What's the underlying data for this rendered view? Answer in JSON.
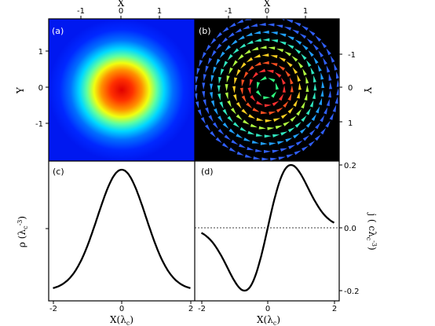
{
  "chart_data": [
    {
      "panel": "(a)",
      "type": "heatmap",
      "xlabel": "X",
      "ylabel": "Y",
      "xlim": [
        -1.9,
        1.9
      ],
      "ylim": [
        -1.9,
        1.9
      ],
      "x_ticks": [
        "-1",
        "0",
        "1"
      ],
      "y_ticks": [
        "1",
        "0",
        "-1"
      ],
      "description_values": {
        "peak": [
          0,
          0
        ],
        "colormap": "jet"
      }
    },
    {
      "panel": "(b)",
      "type": "vector-field",
      "xlabel": "X",
      "ylabel": "Y",
      "xlim": [
        -1.9,
        1.9
      ],
      "ylim": [
        -1.9,
        1.9
      ],
      "x_ticks": [
        "-1",
        "0",
        "1"
      ],
      "y_ticks": [
        "-1",
        "0",
        "1"
      ],
      "background": "#000000",
      "rotation": "counterclockwise"
    },
    {
      "panel": "(c)",
      "type": "line",
      "xlabel": "X(λc)",
      "ylabel": "ρ (λc-3)",
      "xlim": [
        -2.1,
        2.1
      ],
      "x_ticks": [
        "-2",
        "0",
        "2"
      ],
      "x": [
        -2,
        -1.5,
        -1,
        -0.5,
        0,
        0.5,
        1,
        1.5,
        2
      ],
      "y": [
        0.02,
        0.15,
        0.4,
        0.75,
        0.92,
        0.75,
        0.4,
        0.15,
        0.02
      ]
    },
    {
      "panel": "(d)",
      "type": "line",
      "xlabel": "X(λc)",
      "ylabel": "j ( cλc-3 )",
      "xlim": [
        -2.1,
        2.1
      ],
      "ylim": [
        -0.22,
        0.22
      ],
      "x_ticks": [
        "-2",
        "0",
        "2"
      ],
      "y_ticks": [
        "0.2",
        "0.0",
        "-0.2"
      ],
      "reference_line": 0.0,
      "x": [
        -2,
        -1.5,
        -1,
        -0.7,
        -0.4,
        0,
        0.4,
        0.7,
        1,
        1.5,
        2
      ],
      "y": [
        -0.02,
        -0.08,
        -0.18,
        -0.2,
        -0.15,
        0.0,
        0.15,
        0.2,
        0.18,
        0.08,
        0.02
      ]
    }
  ],
  "labels": {
    "a": "(a)",
    "b": "(b)",
    "c": "(c)",
    "d": "(d)",
    "x_top": "X",
    "y_left": "Y",
    "y_right": "Y",
    "x_bottom_c": "X(λ",
    "x_bottom_c_sub": "c",
    "x_bottom_c_end": ")",
    "x_bottom_d": "X(λ",
    "x_bottom_d_sub": "c",
    "x_bottom_d_end": ")",
    "rho_main": "ρ (λ",
    "rho_sub": "c",
    "rho_sup": "-3",
    "rho_end": ")",
    "j_main": "j ( cλ",
    "j_sub": "c",
    "j_sup": "-3",
    "j_end": ")"
  },
  "colors": {
    "line": "#000000",
    "frame": "#000000",
    "vector_bg": "#000000"
  }
}
